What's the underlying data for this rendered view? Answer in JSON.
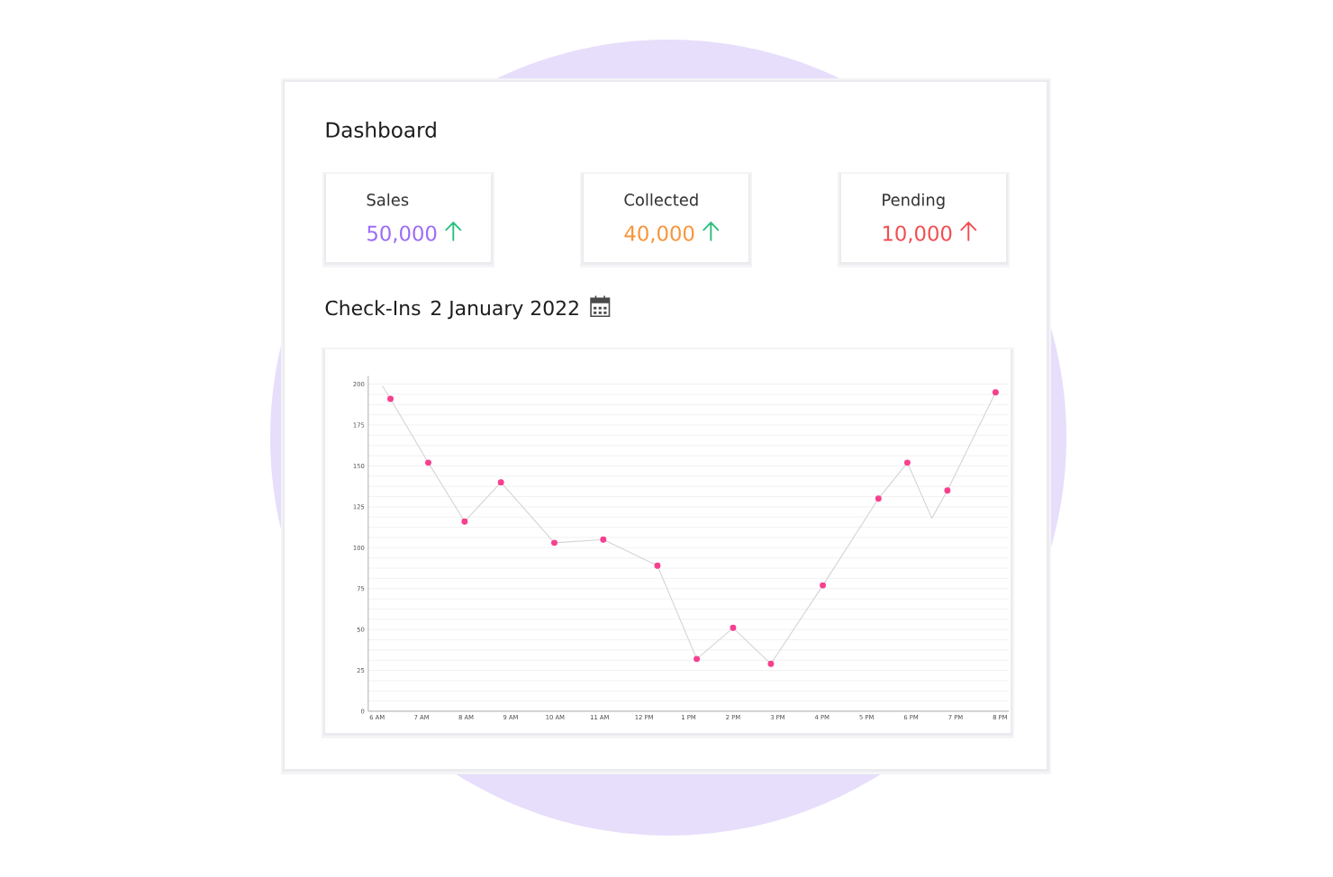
{
  "chart_data": [
    {
      "type": "other",
      "title": "Dashboard",
      "categories": [
        "Sales",
        "Collected",
        "Pending"
      ],
      "value_labels": [
        "50,000",
        "40,000",
        "10,000"
      ]
    },
    {
      "type": "line",
      "title": "Check-Ins",
      "subtitle": "2 January 2022",
      "xlim": [
        "2022-01-02T05:48",
        "2022-01-02T20:12"
      ],
      "xticks": [
        {
          "value": "2022-01-02T06:00",
          "label": "6 AM"
        },
        {
          "value": "2022-01-02T07:00",
          "label": "7 AM"
        },
        {
          "value": "2022-01-02T08:00",
          "label": "8 AM"
        },
        {
          "value": "2022-01-02T09:00",
          "label": "9 AM"
        },
        {
          "value": "2022-01-02T10:00",
          "label": "10 AM"
        },
        {
          "value": "2022-01-02T11:00",
          "label": "11 AM"
        },
        {
          "value": "2022-01-02T12:00",
          "label": "12 PM"
        },
        {
          "value": "2022-01-02T13:00",
          "label": "1 PM"
        },
        {
          "value": "2022-01-02T14:00",
          "label": "2 PM"
        },
        {
          "value": "2022-01-02T15:00",
          "label": "3 PM"
        },
        {
          "value": "2022-01-02T16:00",
          "label": "4 PM"
        },
        {
          "value": "2022-01-02T17:00",
          "label": "5 PM"
        },
        {
          "value": "2022-01-02T18:00",
          "label": "6 PM"
        },
        {
          "value": "2022-01-02T19:00",
          "label": "7 PM"
        },
        {
          "value": "2022-01-02T20:00",
          "label": "8 PM"
        }
      ],
      "ylim": [
        0,
        205
      ],
      "yticks": [
        0,
        {
          "value": 6.25,
          "label": null
        },
        {
          "value": 12.5,
          "label": null
        },
        {
          "value": 18.75,
          "label": null
        },
        25,
        {
          "value": 31.25,
          "label": null
        },
        {
          "value": 37.5,
          "label": null
        },
        {
          "value": 43.75,
          "label": null
        },
        50,
        {
          "value": 56.25,
          "label": null
        },
        {
          "value": 62.5,
          "label": null
        },
        {
          "value": 68.75,
          "label": null
        },
        75,
        {
          "value": 81.25,
          "label": null
        },
        {
          "value": 87.5,
          "label": null
        },
        {
          "value": 93.75,
          "label": null
        },
        100,
        {
          "value": 106.25,
          "label": null
        },
        {
          "value": 112.5,
          "label": null
        },
        {
          "value": 118.75,
          "label": null
        },
        125,
        {
          "value": 131.25,
          "label": null
        },
        {
          "value": 137.5,
          "label": null
        },
        {
          "value": 143.75,
          "label": null
        },
        150,
        {
          "value": 156.25,
          "label": null
        },
        {
          "value": 162.5,
          "label": null
        },
        {
          "value": 168.75,
          "label": null
        },
        175,
        {
          "value": 181.25,
          "label": null
        },
        {
          "value": 187.5,
          "label": null
        },
        {
          "value": 193.75,
          "label": null
        },
        200
      ],
      "grid": "y",
      "series": [
        {
          "type": "line",
          "color": "#d4d4d4",
          "marker": "none",
          "line_style": "solid",
          "x": [
            "2022-01-02T06:07",
            "2022-01-02T06:18",
            "2022-01-02T07:09",
            "2022-01-02T07:58",
            "2022-01-02T08:47",
            "2022-01-02T09:59",
            "2022-01-02T11:05",
            "2022-01-02T12:18",
            "2022-01-02T13:11",
            "2022-01-02T14:00",
            "2022-01-02T14:51",
            "2022-01-02T16:01",
            "2022-01-02T17:16",
            "2022-01-02T17:55",
            "2022-01-02T18:28",
            "2022-01-02T18:49",
            "2022-01-02T19:54"
          ],
          "values": [
            199,
            191,
            152,
            116,
            140,
            103,
            105,
            89,
            32,
            51,
            29,
            77,
            130,
            152,
            118,
            135,
            195
          ]
        },
        {
          "type": "scatter",
          "color": "#f73f8f",
          "marker": "circle",
          "x": [
            "2022-01-02T06:18",
            "2022-01-02T07:09",
            "2022-01-02T07:58",
            "2022-01-02T08:47",
            "2022-01-02T09:59",
            "2022-01-02T11:05",
            "2022-01-02T12:18",
            "2022-01-02T13:11",
            "2022-01-02T14:00",
            "2022-01-02T14:51",
            "2022-01-02T16:01",
            "2022-01-02T17:16",
            "2022-01-02T17:55",
            "2022-01-02T18:49",
            "2022-01-02T19:54"
          ],
          "values": [
            191,
            152,
            116,
            140,
            103,
            105,
            89,
            32,
            51,
            29,
            77,
            130,
            152,
            135,
            195
          ]
        }
      ]
    }
  ]
}
